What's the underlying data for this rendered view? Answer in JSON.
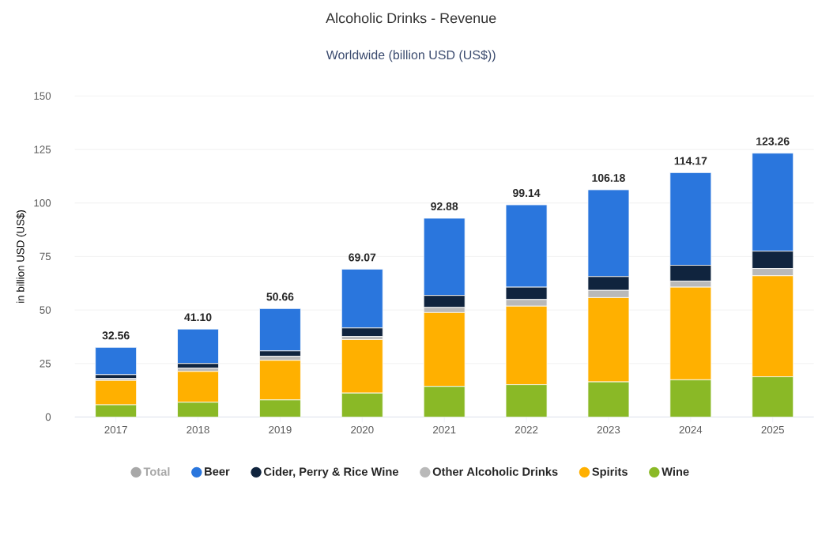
{
  "chart_data": {
    "type": "bar",
    "title": "Alcoholic Drinks - Revenue",
    "subtitle": "Worldwide (billion USD (US$))",
    "ylabel": "in billion USD (US$)",
    "categories": [
      "2017",
      "2018",
      "2019",
      "2020",
      "2021",
      "2022",
      "2023",
      "2024",
      "2025"
    ],
    "stacked": true,
    "series": [
      {
        "name": "Wine",
        "color": "#8ab926",
        "values": [
          5.7,
          6.9,
          8.0,
          11.2,
          14.3,
          15.1,
          16.4,
          17.4,
          18.8
        ]
      },
      {
        "name": "Spirits",
        "color": "#ffb000",
        "values": [
          11.4,
          14.4,
          18.5,
          25.0,
          34.5,
          36.7,
          39.4,
          43.3,
          47.2
        ]
      },
      {
        "name": "Other Alcoholic Drinks",
        "color": "#b9b9b9",
        "values": [
          0.9,
          1.6,
          1.9,
          1.4,
          2.4,
          3.1,
          3.4,
          2.8,
          3.4
        ]
      },
      {
        "name": "Cider, Perry & Rice Wine",
        "color": "#10243e",
        "values": [
          1.8,
          2.1,
          2.5,
          4.0,
          5.6,
          5.8,
          6.4,
          7.4,
          8.1
        ]
      },
      {
        "name": "Beer",
        "color": "#2a76dd",
        "values": [
          12.76,
          16.1,
          19.76,
          27.47,
          36.08,
          38.44,
          40.58,
          43.27,
          45.76
        ]
      },
      {
        "name": "Total",
        "color": "#a8a8a8",
        "values": [
          null,
          null,
          null,
          null,
          null,
          null,
          null,
          null,
          null
        ]
      }
    ],
    "totals": [
      "32.56",
      "41.10",
      "50.66",
      "69.07",
      "92.88",
      "99.14",
      "106.18",
      "114.17",
      "123.26"
    ],
    "ylim": [
      0,
      150
    ],
    "yticks": [
      0,
      25,
      50,
      75,
      100,
      125,
      150
    ],
    "grid": "y",
    "legend": "bottom"
  }
}
